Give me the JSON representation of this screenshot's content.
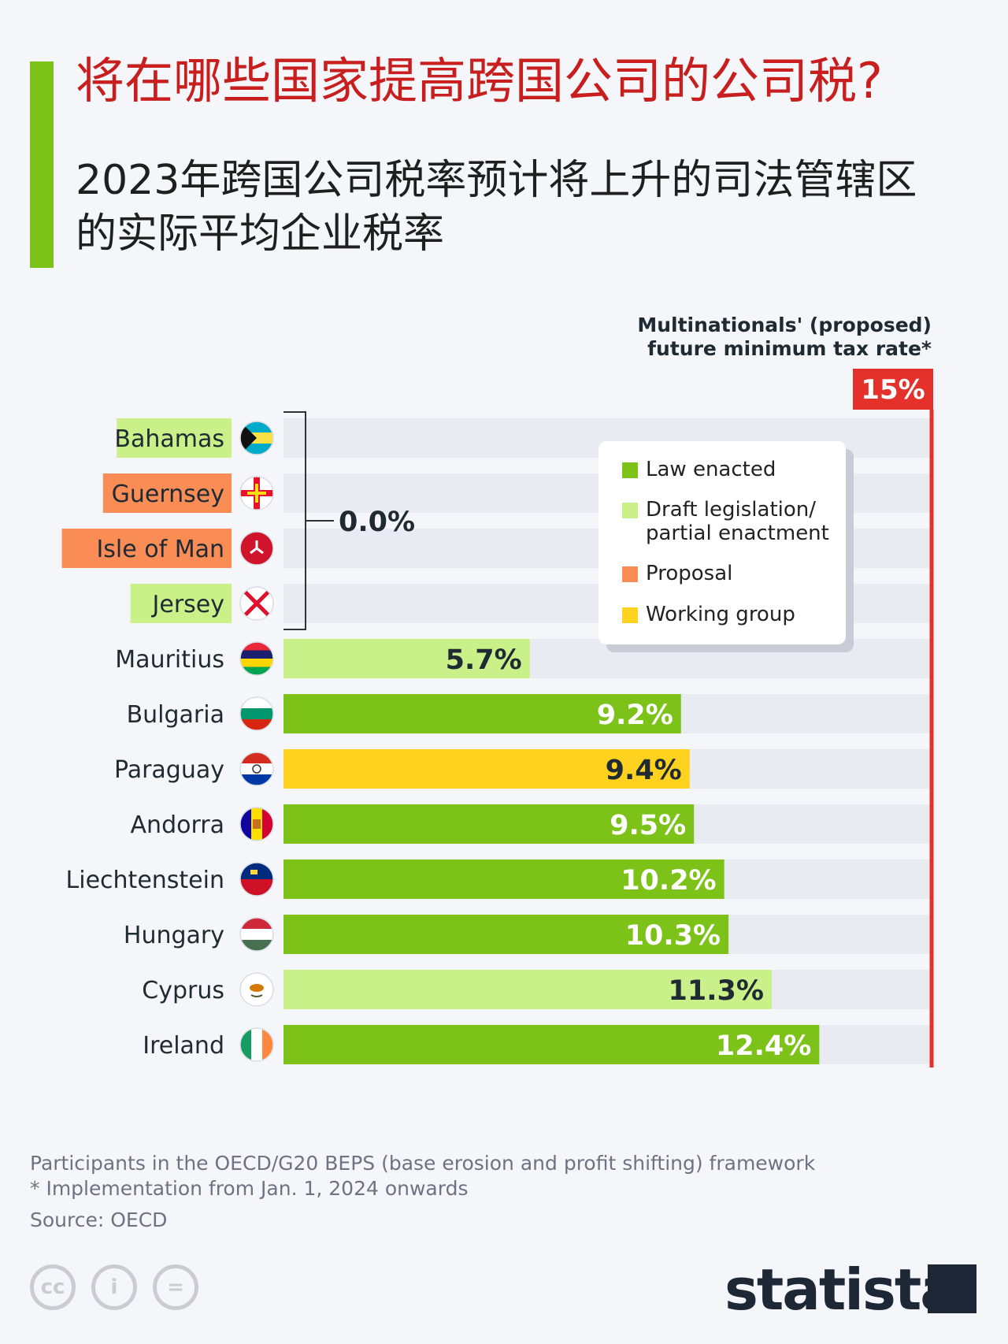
{
  "header": {
    "title": "将在哪些国家提高跨国公司的公司税?",
    "subtitle": "2023年跨国公司税率预计将上升的司法管辖区的实际平均企业税率"
  },
  "colors": {
    "law_enacted": "#7cc218",
    "draft_legislation": "#c9f089",
    "proposal": "#f98d55",
    "working_group": "#ffd21f",
    "threshold": "#e4312b",
    "accent": "#7cc218",
    "title": "#c81e1e"
  },
  "legend": {
    "items": [
      {
        "label": "Law enacted",
        "color": "#7cc218"
      },
      {
        "label": "Draft legislation/ partial enactment",
        "color": "#c9f089"
      },
      {
        "label": "Proposal",
        "color": "#f98d55"
      },
      {
        "label": "Working group",
        "color": "#ffd21f"
      }
    ]
  },
  "chart_data": {
    "type": "bar",
    "orientation": "horizontal",
    "xlim": [
      0,
      15
    ],
    "threshold": {
      "value": 15,
      "label": "15%",
      "caption": "Multinationals' (proposed) future minimum tax rate*"
    },
    "zero_group_label": "0.0%",
    "categories": [
      "Bahamas",
      "Guernsey",
      "Isle of Man",
      "Jersey",
      "Mauritius",
      "Bulgaria",
      "Paraguay",
      "Andorra",
      "Liechtenstein",
      "Hungary",
      "Cyprus",
      "Ireland"
    ],
    "values": [
      0.0,
      0.0,
      0.0,
      0.0,
      5.7,
      9.2,
      9.4,
      9.5,
      10.2,
      10.3,
      11.3,
      12.4
    ],
    "value_labels": [
      "",
      "",
      "",
      "",
      "5.7%",
      "9.2%",
      "9.4%",
      "9.5%",
      "10.2%",
      "10.3%",
      "11.3%",
      "12.4%"
    ],
    "status": [
      "Draft legislation",
      "Proposal",
      "Proposal",
      "Draft legislation",
      "Draft legislation",
      "Law enacted",
      "Working group",
      "Law enacted",
      "Law enacted",
      "Law enacted",
      "Draft legislation",
      "Law enacted"
    ],
    "flag_icons": [
      "bahamas-flag-icon",
      "guernsey-flag-icon",
      "isle-of-man-flag-icon",
      "jersey-flag-icon",
      "mauritius-flag-icon",
      "bulgaria-flag-icon",
      "paraguay-flag-icon",
      "andorra-flag-icon",
      "liechtenstein-flag-icon",
      "hungary-flag-icon",
      "cyprus-flag-icon",
      "ireland-flag-icon"
    ]
  },
  "footer": {
    "note1": "Participants in the OECD/G20 BEPS (base erosion and profit shifting) framework",
    "note2": "* Implementation from Jan. 1, 2024 onwards",
    "source": "Source: OECD",
    "logo": "statista"
  }
}
